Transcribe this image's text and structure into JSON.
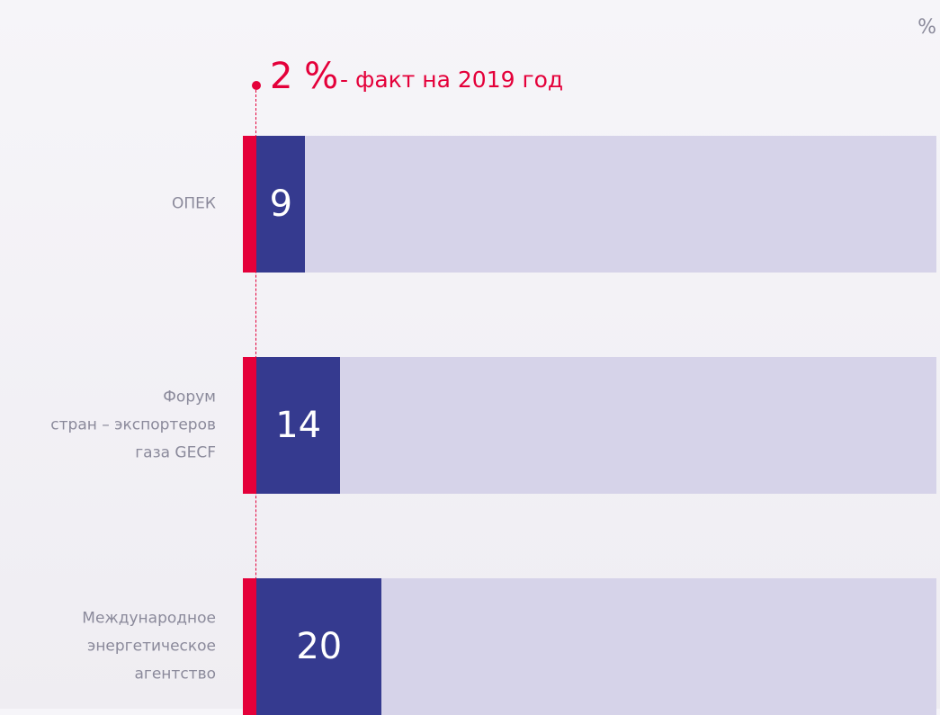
{
  "chart_data": {
    "type": "bar",
    "orientation": "horizontal",
    "unit": "%",
    "categories": [
      "ОПЕК",
      "Форум\nстран – экспортеров\nгаза GECF",
      "Международное\nэнергетическое\nагентство"
    ],
    "values": [
      9,
      14,
      20
    ],
    "color": "#353a8f",
    "track_color": "#d6d3e9",
    "xlim": [
      0,
      100
    ],
    "marker": {
      "value": 2,
      "label": "2 %",
      "text": "- факт на 2019 год",
      "color": "#e4003a"
    }
  }
}
